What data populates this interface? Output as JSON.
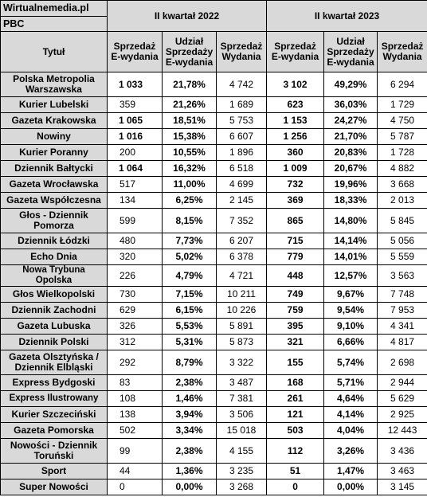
{
  "source": "Wirtualnemedia.pl",
  "auditor": "PBC",
  "periods": {
    "q2_2022": "II kwartał 2022",
    "q2_2023": "II kwartał 2023"
  },
  "columns": {
    "title": "Tytuł",
    "e_sales": "Sprzedaż E-wydania",
    "e_share": "Udział Sprzedaży E-wydania",
    "sales": "Sprzedaż Wydania"
  },
  "rows": [
    {
      "title": "Polska Metropolia Warszawska",
      "e22": "1 033",
      "s22": "21,78%",
      "w22": "4 742",
      "e23": "3 102",
      "s23": "49,29%",
      "w23": "6 294"
    },
    {
      "title": "Kurier Lubelski",
      "e22": "359",
      "s22": "21,26%",
      "w22": "1 689",
      "e23": "623",
      "s23": "36,03%",
      "w23": "1 729"
    },
    {
      "title": "Gazeta Krakowska",
      "e22": "1 065",
      "s22": "18,51%",
      "w22": "5 753",
      "e23": "1 153",
      "s23": "24,27%",
      "w23": "4 750"
    },
    {
      "title": "Nowiny",
      "e22": "1 016",
      "s22": "15,38%",
      "w22": "6 607",
      "e23": "1 256",
      "s23": "21,70%",
      "w23": "5 787"
    },
    {
      "title": "Kurier Poranny",
      "e22": "200",
      "s22": "10,55%",
      "w22": "1 896",
      "e23": "360",
      "s23": "20,83%",
      "w23": "1 728"
    },
    {
      "title": "Dziennik Bałtycki",
      "e22": "1 064",
      "s22": "16,32%",
      "w22": "6 518",
      "e23": "1 009",
      "s23": "20,67%",
      "w23": "4 882"
    },
    {
      "title": "Gazeta Wrocławska",
      "e22": "517",
      "s22": "11,00%",
      "w22": "4 699",
      "e23": "732",
      "s23": "19,96%",
      "w23": "3 668"
    },
    {
      "title": "Gazeta Współczesna",
      "e22": "134",
      "s22": "6,25%",
      "w22": "2 145",
      "e23": "369",
      "s23": "18,33%",
      "w23": "2 013"
    },
    {
      "title": "Głos - Dziennik Pomorza",
      "e22": "599",
      "s22": "8,15%",
      "w22": "7 352",
      "e23": "865",
      "s23": "14,80%",
      "w23": "5 845"
    },
    {
      "title": "Dziennik Łódzki",
      "e22": "480",
      "s22": "7,73%",
      "w22": "6 207",
      "e23": "715",
      "s23": "14,14%",
      "w23": "5 056"
    },
    {
      "title": "Echo Dnia",
      "e22": "320",
      "s22": "5,02%",
      "w22": "6 378",
      "e23": "779",
      "s23": "14,01%",
      "w23": "5 559"
    },
    {
      "title": "Nowa Trybuna Opolska",
      "e22": "226",
      "s22": "4,79%",
      "w22": "4 721",
      "e23": "448",
      "s23": "12,57%",
      "w23": "3 563"
    },
    {
      "title": "Głos Wielkopolski",
      "e22": "730",
      "s22": "7,15%",
      "w22": "10 211",
      "e23": "749",
      "s23": "9,67%",
      "w23": "7 748"
    },
    {
      "title": "Dziennik Zachodni",
      "e22": "629",
      "s22": "6,15%",
      "w22": "10 226",
      "e23": "759",
      "s23": "9,54%",
      "w23": "7 953"
    },
    {
      "title": "Gazeta Lubuska",
      "e22": "326",
      "s22": "5,53%",
      "w22": "5 891",
      "e23": "395",
      "s23": "9,10%",
      "w23": "4 341"
    },
    {
      "title": "Dziennik Polski",
      "e22": "312",
      "s22": "5,31%",
      "w22": "5 873",
      "e23": "321",
      "s23": "6,66%",
      "w23": "4 817"
    },
    {
      "title": "Gazeta Olsztyńska / Dziennik Elbląski",
      "e22": "292",
      "s22": "8,79%",
      "w22": "3 322",
      "e23": "155",
      "s23": "5,74%",
      "w23": "2 698"
    },
    {
      "title": "Express Bydgoski",
      "e22": "83",
      "s22": "2,38%",
      "w22": "3 487",
      "e23": "168",
      "s23": "5,71%",
      "w23": "2 944"
    },
    {
      "title": "Express Ilustrowany",
      "e22": "108",
      "s22": "1,46%",
      "w22": "7 381",
      "e23": "261",
      "s23": "4,64%",
      "w23": "5 629"
    },
    {
      "title": "Kurier Szczeciński",
      "e22": "138",
      "s22": "3,94%",
      "w22": "3 506",
      "e23": "121",
      "s23": "4,14%",
      "w23": "2 925"
    },
    {
      "title": "Gazeta Pomorska",
      "e22": "502",
      "s22": "3,34%",
      "w22": "15 018",
      "e23": "503",
      "s23": "4,04%",
      "w23": "12 443"
    },
    {
      "title": "Nowości - Dziennik Toruński",
      "e22": "99",
      "s22": "2,38%",
      "w22": "4 155",
      "e23": "112",
      "s23": "3,26%",
      "w23": "3 436"
    },
    {
      "title": "Sport",
      "e22": "44",
      "s22": "1,36%",
      "w22": "3 235",
      "e23": "51",
      "s23": "1,47%",
      "w23": "3 463"
    },
    {
      "title": "Super Nowości",
      "e22": "0",
      "s22": "0,00%",
      "w22": "3 268",
      "e23": "0",
      "s23": "0,00%",
      "w23": "3 145"
    }
  ]
}
